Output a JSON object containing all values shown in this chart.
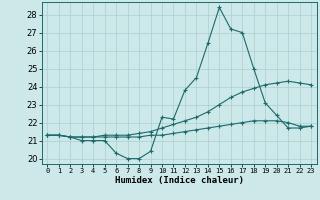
{
  "xlabel": "Humidex (Indice chaleur)",
  "background_color": "#cce8e8",
  "grid_color": "#aacfcf",
  "line_color": "#1a6b6b",
  "xlim": [
    -0.5,
    23.5
  ],
  "ylim": [
    19.7,
    28.7
  ],
  "xticks": [
    0,
    1,
    2,
    3,
    4,
    5,
    6,
    7,
    8,
    9,
    10,
    11,
    12,
    13,
    14,
    15,
    16,
    17,
    18,
    19,
    20,
    21,
    22,
    23
  ],
  "yticks": [
    20,
    21,
    22,
    23,
    24,
    25,
    26,
    27,
    28
  ],
  "series": [
    {
      "x": [
        0,
        1,
        2,
        3,
        4,
        5,
        6,
        7,
        8,
        9,
        10,
        11,
        12,
        13,
        14,
        15,
        16,
        17,
        18,
        19,
        20,
        21,
        22,
        23
      ],
      "y": [
        21.3,
        21.3,
        21.2,
        21.0,
        21.0,
        21.0,
        20.3,
        20.0,
        20.0,
        20.4,
        22.3,
        22.2,
        23.8,
        24.5,
        26.4,
        28.4,
        27.2,
        27.0,
        25.0,
        23.1,
        22.4,
        21.7,
        21.7,
        21.8
      ]
    },
    {
      "x": [
        0,
        1,
        2,
        3,
        4,
        5,
        6,
        7,
        8,
        9,
        10,
        11,
        12,
        13,
        14,
        15,
        16,
        17,
        18,
        19,
        20,
        21,
        22,
        23
      ],
      "y": [
        21.3,
        21.3,
        21.2,
        21.2,
        21.2,
        21.3,
        21.3,
        21.3,
        21.4,
        21.5,
        21.7,
        21.9,
        22.1,
        22.3,
        22.6,
        23.0,
        23.4,
        23.7,
        23.9,
        24.1,
        24.2,
        24.3,
        24.2,
        24.1
      ]
    },
    {
      "x": [
        0,
        1,
        2,
        3,
        4,
        5,
        6,
        7,
        8,
        9,
        10,
        11,
        12,
        13,
        14,
        15,
        16,
        17,
        18,
        19,
        20,
        21,
        22,
        23
      ],
      "y": [
        21.3,
        21.3,
        21.2,
        21.2,
        21.2,
        21.2,
        21.2,
        21.2,
        21.2,
        21.3,
        21.3,
        21.4,
        21.5,
        21.6,
        21.7,
        21.8,
        21.9,
        22.0,
        22.1,
        22.1,
        22.1,
        22.0,
        21.8,
        21.8
      ]
    }
  ]
}
